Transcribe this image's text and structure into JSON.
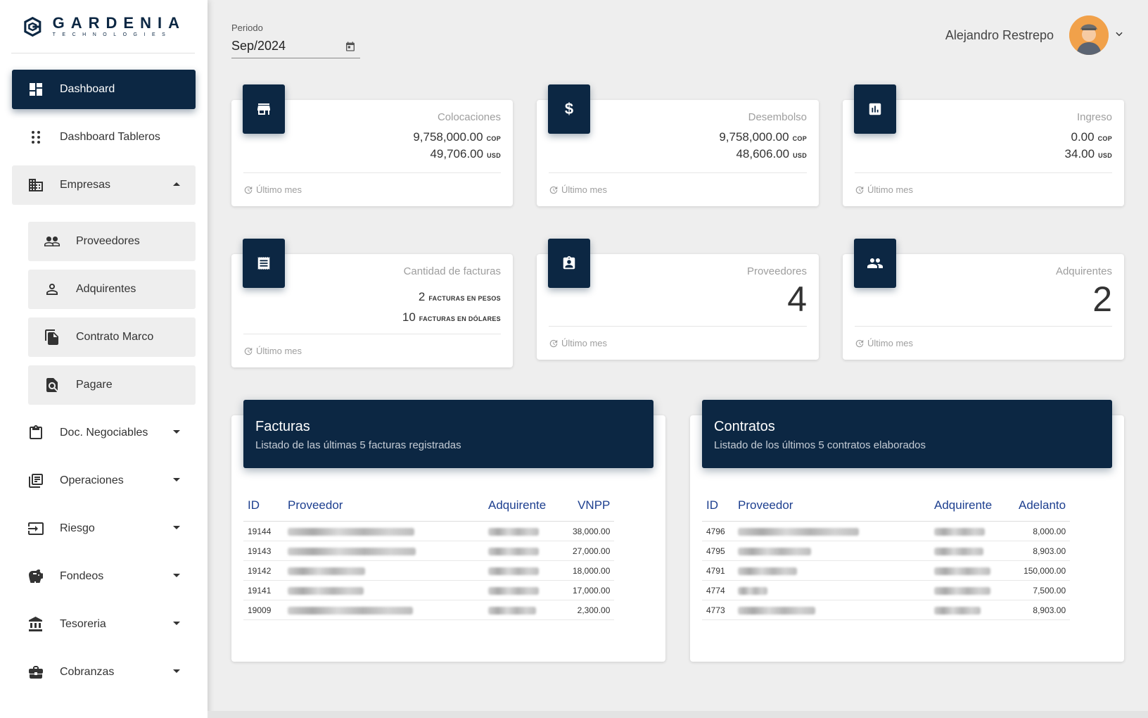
{
  "brand": {
    "name": "GARDENIA",
    "sub": "TECHNOLOGIES"
  },
  "sidebar": {
    "items": [
      {
        "label": "Dashboard",
        "icon": "dashboard-icon"
      },
      {
        "label": "Dashboard Tableros",
        "icon": "apps-icon"
      },
      {
        "label": "Empresas",
        "icon": "business-icon"
      },
      {
        "label": "Proveedores",
        "icon": "people-icon"
      },
      {
        "label": "Adquirentes",
        "icon": "person-icon"
      },
      {
        "label": "Contrato Marco",
        "icon": "file-copy-icon"
      },
      {
        "label": "Pagare",
        "icon": "find-in-page-icon"
      },
      {
        "label": "Doc. Negociables",
        "icon": "clipboard-icon"
      },
      {
        "label": "Operaciones",
        "icon": "library-books-icon"
      },
      {
        "label": "Riesgo",
        "icon": "input-icon"
      },
      {
        "label": "Fondeos",
        "icon": "piggy-bank-icon"
      },
      {
        "label": "Tesoreria",
        "icon": "bank-icon"
      },
      {
        "label": "Cobranzas",
        "icon": "briefcase-icon"
      }
    ]
  },
  "header": {
    "period_label": "Periodo",
    "period_value": "Sep/2024",
    "user_name": "Alejandro Restrepo"
  },
  "cards": {
    "colocaciones": {
      "title": "Colocaciones",
      "cop": "9,758,000.00",
      "usd": "49,706.00",
      "footer": "Último mes"
    },
    "desembolso": {
      "title": "Desembolso",
      "cop": "9,758,000.00",
      "usd": "48,606.00",
      "footer": "Último mes"
    },
    "ingreso": {
      "title": "Ingreso",
      "cop": "0.00",
      "usd": "34.00",
      "footer": "Último mes"
    },
    "facturas": {
      "title": "Cantidad de facturas",
      "pesos_count": "2",
      "pesos_label": "FACTURAS EN PESOS",
      "dolares_count": "10",
      "dolares_label": "FACTURAS EN DÓLARES",
      "footer": "Último mes"
    },
    "proveedores": {
      "title": "Proveedores",
      "value": "4",
      "footer": "Último mes"
    },
    "adquirentes": {
      "title": "Adquirentes",
      "value": "2",
      "footer": "Último mes"
    },
    "unit_cop": "COP",
    "unit_usd": "USD"
  },
  "facturas_table": {
    "title": "Facturas",
    "subtitle": "Listado de las últimas 5 facturas registradas",
    "columns": [
      "ID",
      "Proveedor",
      "Adquirente",
      "VNPP"
    ],
    "rows": [
      {
        "id": "19144",
        "value": "38,000.00"
      },
      {
        "id": "19143",
        "value": "27,000.00"
      },
      {
        "id": "19142",
        "value": "18,000.00"
      },
      {
        "id": "19141",
        "value": "17,000.00"
      },
      {
        "id": "19009",
        "value": "2,300.00"
      }
    ]
  },
  "contratos_table": {
    "title": "Contratos",
    "subtitle": "Listado de los últimos 5 contratos elaborados",
    "columns": [
      "ID",
      "Proveedor",
      "Adquirente",
      "Adelanto"
    ],
    "rows": [
      {
        "id": "4796",
        "value": "8,000.00"
      },
      {
        "id": "4795",
        "value": "8,903.00"
      },
      {
        "id": "4791",
        "value": "150,000.00"
      },
      {
        "id": "4774",
        "value": "7,500.00"
      },
      {
        "id": "4773",
        "value": "8,903.00"
      }
    ]
  },
  "colors": {
    "primary": "#0c2743",
    "link": "#1d3f8f",
    "background": "#eeeeee"
  }
}
